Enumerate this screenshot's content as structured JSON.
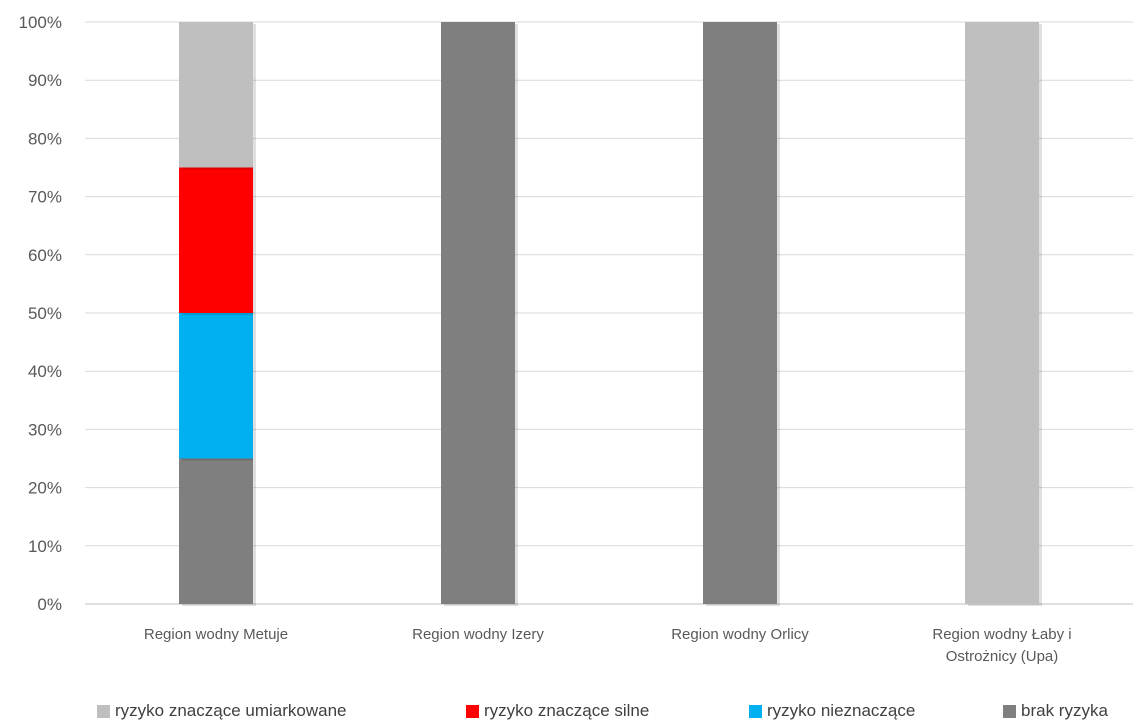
{
  "chart_data": {
    "type": "bar",
    "stacked": true,
    "percent": true,
    "categories": [
      [
        "Region wodny Metuje"
      ],
      [
        "Region wodny Izery"
      ],
      [
        "Region wodny Orlicy"
      ],
      [
        "Region wodny Łaby i",
        "Ostrożnicy (Upa)"
      ]
    ],
    "series": [
      {
        "name": "brak ryzyka",
        "color": "#7f7f7f",
        "values": [
          25,
          100,
          100,
          0
        ]
      },
      {
        "name": "ryzyko nieznaczące",
        "color": "#00b0f0",
        "values": [
          25,
          0,
          0,
          0
        ]
      },
      {
        "name": "ryzyko znaczące silne",
        "color": "#ff0000",
        "values": [
          25,
          0,
          0,
          0
        ]
      },
      {
        "name": "ryzyko znaczące umiarkowane",
        "color": "#bfbfbf",
        "values": [
          25,
          0,
          0,
          100
        ]
      }
    ],
    "yticks": [
      "0%",
      "10%",
      "20%",
      "30%",
      "40%",
      "50%",
      "60%",
      "70%",
      "80%",
      "90%",
      "100%"
    ],
    "ylim": [
      0,
      100
    ],
    "grid": true,
    "legend_position": "bottom",
    "legend_order": [
      "ryzyko znaczące umiarkowane",
      "ryzyko znaczące silne",
      "ryzyko nieznaczące",
      "brak ryzyka"
    ]
  }
}
